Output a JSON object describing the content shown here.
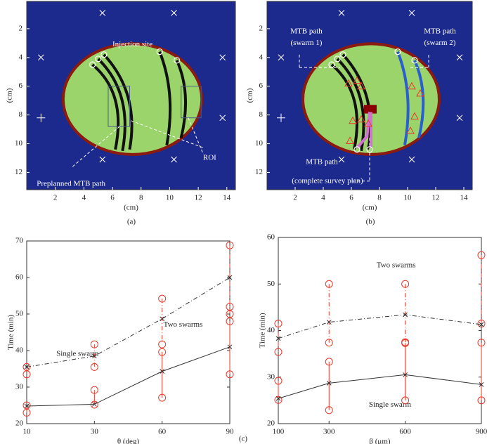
{
  "figure_label": "(c)",
  "chart_data": [
    {
      "type": "map",
      "panel": "(a)",
      "xlabel": "(cm)",
      "ylabel": "(cm)",
      "xlim": [
        0,
        14.6
      ],
      "ylim": [
        13.2,
        0.1
      ],
      "xticks": [
        2,
        4,
        6,
        8,
        10,
        12,
        14
      ],
      "yticks": [
        2,
        4,
        6,
        8,
        10,
        12
      ],
      "annotations": [
        "Injection site",
        "Preplanned MTB path",
        "ROI"
      ]
    },
    {
      "type": "map",
      "panel": "(b)",
      "xlabel": "(cm)",
      "ylabel": "(cm)",
      "xlim": [
        0,
        14.6
      ],
      "ylim": [
        13.2,
        0.1
      ],
      "xticks": [
        2,
        4,
        6,
        8,
        10,
        12,
        14
      ],
      "yticks": [
        2,
        4,
        6,
        8,
        10,
        12
      ],
      "annotations": [
        "MTB path",
        "(swarm 1)",
        "MTB path",
        "(swarm 2)",
        "MTB path",
        "(complete survey plan)"
      ]
    },
    {
      "type": "line",
      "xlabel": "θ (deg)",
      "ylabel": "Time (min)",
      "categories": [
        "10",
        "30",
        "60",
        "90"
      ],
      "ylim": [
        20,
        70
      ],
      "yticks": [
        20,
        30,
        40,
        50,
        60,
        70
      ],
      "trial_color": "#e8392a",
      "series": [
        {
          "name": "Single swarm",
          "color": "#333333",
          "style": "dashdot",
          "values": [
            35.5,
            38.5,
            48.7,
            60
          ],
          "trials": [
            [
              35.5,
              33.5
            ],
            [
              41.7,
              35.5
            ],
            [
              54.2,
              41.7
            ],
            [
              68.8,
              52,
              50
            ]
          ]
        },
        {
          "name": "Two swarms",
          "color": "#333333",
          "style": "solid",
          "values": [
            24.8,
            25.3,
            34.3,
            41
          ],
          "trials": [
            [
              25,
              23
            ],
            [
              29.2,
              25.2
            ],
            [
              39.6,
              27.1
            ],
            [
              48,
              33.5
            ]
          ]
        }
      ]
    },
    {
      "type": "line",
      "xlabel": "β (μm)",
      "ylabel": "Time (min)",
      "x": [
        100,
        300,
        600,
        900
      ],
      "xlim": [
        100,
        900
      ],
      "xticks": [
        100,
        300,
        600,
        900
      ],
      "ylim": [
        20,
        60
      ],
      "yticks": [
        20,
        30,
        40,
        50,
        60
      ],
      "trial_color": "#e8392a",
      "series": [
        {
          "name": "Single swarm",
          "color": "#333333",
          "style": "dashdot",
          "values": [
            38.3,
            41.8,
            43.4,
            41.3
          ],
          "trials": [
            [
              41.5,
              35.4
            ],
            [
              50,
              37.4
            ],
            [
              50,
              37.5
            ],
            [
              56.2,
              41.5
            ]
          ]
        },
        {
          "name": "Two swarms",
          "color": "#333333",
          "style": "solid",
          "values": [
            25.4,
            28.7,
            30.5,
            28.4
          ],
          "trials": [
            [
              29.2,
              25.1
            ],
            [
              33.3,
              22.9
            ],
            [
              37.3,
              25
            ],
            [
              37.4,
              25
            ]
          ]
        }
      ]
    }
  ]
}
